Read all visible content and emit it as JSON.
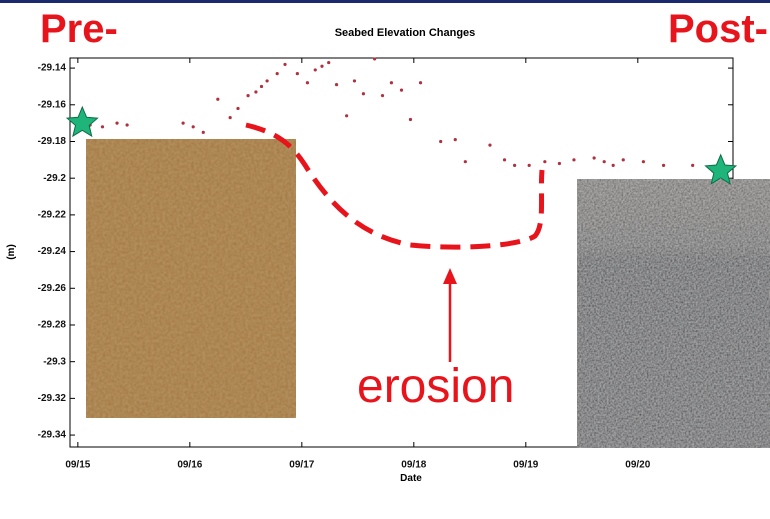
{
  "chart_data": {
    "type": "scatter",
    "title": "Seabed Elevation Changes",
    "y_label": "(m)",
    "x_label": "Date",
    "annotations": {
      "pre": "Pre-",
      "post": "Post-",
      "erosion": "erosion"
    },
    "x": [
      0.11,
      0.22,
      0.35,
      0.44,
      0.94,
      1.03,
      1.12,
      1.25,
      1.36,
      1.43,
      1.52,
      1.59,
      1.64,
      1.69,
      1.78,
      1.85,
      1.96,
      2.05,
      2.12,
      2.18,
      2.24,
      2.31,
      2.4,
      2.47,
      2.55,
      2.65,
      2.72,
      2.8,
      2.89,
      2.97,
      3.06,
      3.24,
      3.37,
      3.46,
      3.68,
      3.81,
      3.9,
      4.03,
      4.17,
      4.3,
      4.43,
      4.61,
      4.7,
      4.78,
      4.87,
      5.05,
      5.23,
      5.49,
      5.67
    ],
    "values": [
      -29.171,
      -29.172,
      -29.17,
      -29.171,
      -29.17,
      -29.172,
      -29.175,
      -29.157,
      -29.167,
      -29.162,
      -29.155,
      -29.153,
      -29.15,
      -29.147,
      -29.143,
      -29.138,
      -29.143,
      -29.148,
      -29.141,
      -29.139,
      -29.137,
      -29.149,
      -29.166,
      -29.147,
      -29.154,
      -29.135,
      -29.155,
      -29.148,
      -29.152,
      -29.168,
      -29.148,
      -29.18,
      -29.179,
      -29.191,
      -29.182,
      -29.19,
      -29.193,
      -29.193,
      -29.191,
      -29.192,
      -29.19,
      -29.189,
      -29.191,
      -29.193,
      -29.19,
      -29.191,
      -29.193,
      -29.193,
      -29.196
    ],
    "color": "#b03040",
    "stars": {
      "x": [
        0.04,
        5.74
      ],
      "values": [
        -29.17,
        -29.196
      ],
      "color": "#1fb47a"
    },
    "xlim": [
      -0.07,
      5.85
    ],
    "ylim": [
      -29.3465,
      -29.1345
    ],
    "xticks": [
      {
        "value": 0,
        "label": "09/15"
      },
      {
        "value": 1,
        "label": "09/16"
      },
      {
        "value": 2,
        "label": "09/17"
      },
      {
        "value": 3,
        "label": "09/18"
      },
      {
        "value": 4,
        "label": "09/19"
      },
      {
        "value": 5,
        "label": "09/20"
      }
    ],
    "yticks": [
      -29.14,
      -29.16,
      -29.18,
      -29.2,
      -29.22,
      -29.24,
      -29.26,
      -29.28,
      -29.3,
      -29.32,
      -29.34
    ]
  }
}
